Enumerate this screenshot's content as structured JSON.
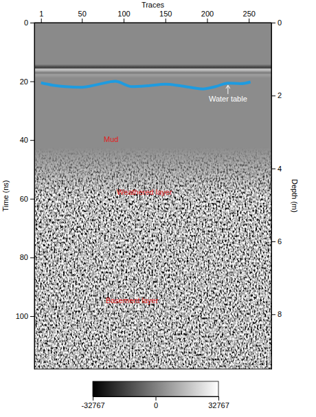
{
  "chart_data": {
    "type": "radargram",
    "xlabel": "Traces",
    "ylabel": "Time (ns)",
    "y2label": "Depth (m)",
    "xlim": [
      -7,
      277
    ],
    "xticks": [
      1,
      50,
      100,
      150,
      200,
      250
    ],
    "ylim": [
      0,
      118
    ],
    "yticks": [
      0,
      20,
      40,
      60,
      80,
      100
    ],
    "y2lim": [
      0,
      9.5
    ],
    "y2ticks": [
      0,
      2,
      4,
      6,
      8
    ],
    "series": [
      {
        "name": "Water table",
        "color": "#1e9be0",
        "line_style": "solid",
        "x": [
          1,
          15,
          30,
          50,
          70,
          90,
          110,
          130,
          150,
          170,
          195,
          210,
          225,
          240,
          252
        ],
        "values": [
          20.5,
          21.3,
          21.8,
          22.0,
          21.0,
          20.0,
          21.8,
          21.5,
          21.0,
          21.6,
          22.6,
          21.8,
          20.6,
          20.8,
          20.2
        ]
      }
    ],
    "annotations": [
      {
        "text": "Mud",
        "x": 85,
        "y": 40,
        "color": "#e0201c"
      },
      {
        "text": "Weathered layer",
        "x": 125,
        "y": 58,
        "color": "#e0201c"
      },
      {
        "text": "Basement layer",
        "x": 110,
        "y": 95,
        "color": "#e0201c"
      }
    ],
    "colorbar": {
      "range": [
        -32767,
        32767
      ],
      "ticks": [
        -32767,
        0,
        32767
      ]
    }
  }
}
